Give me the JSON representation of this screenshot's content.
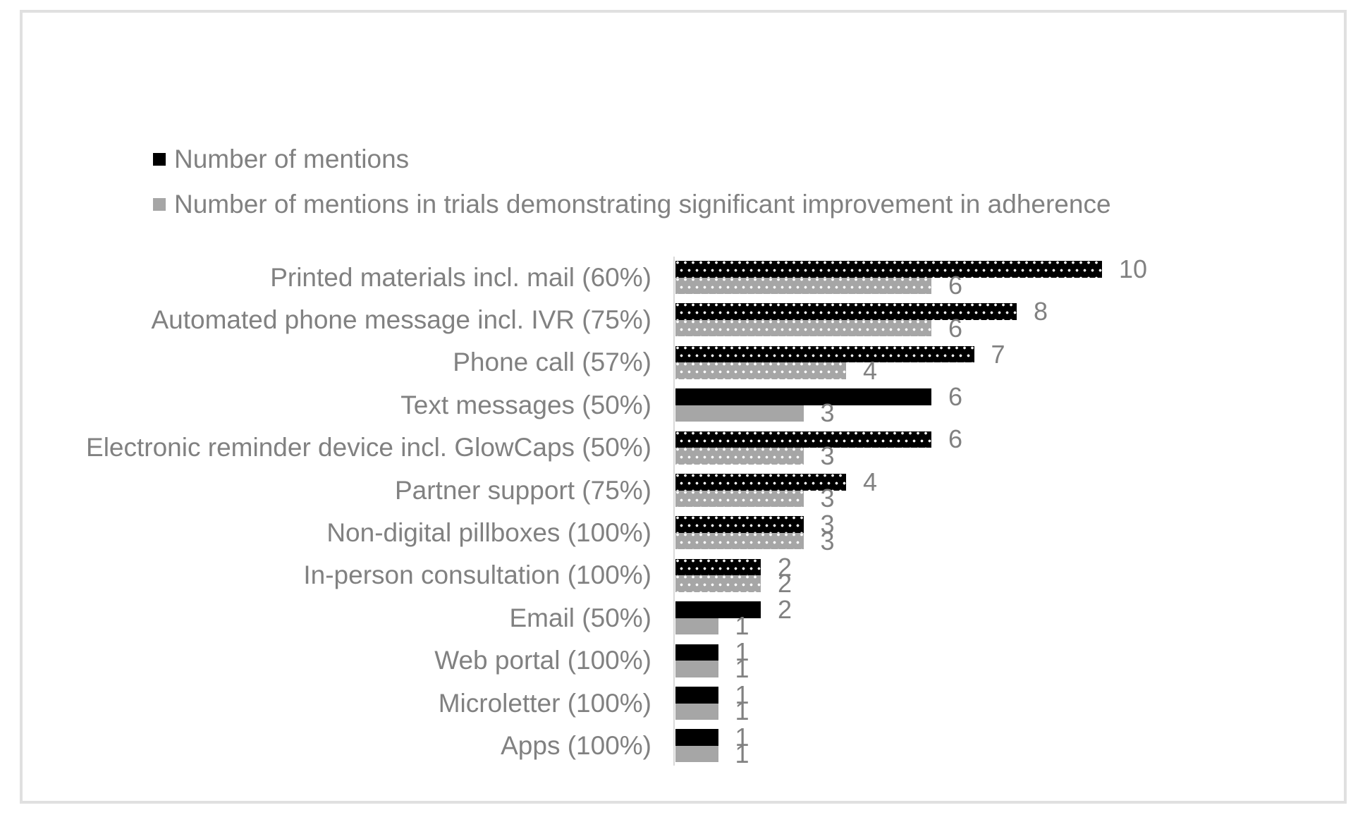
{
  "legend": {
    "items": [
      {
        "label": "Number of mentions",
        "color": "#000000"
      },
      {
        "label": "Number of mentions in trials demonstrating significant improvement in adherence",
        "color": "#a6a6a6"
      }
    ]
  },
  "colors": {
    "bar_primary": "#000000",
    "bar_secondary": "#a6a6a6",
    "text": "#818181",
    "axis_line": "#d9d9d9",
    "frame_border": "#e0e0e0",
    "pattern_dot": "#ffffff"
  },
  "chart_data": {
    "type": "bar",
    "orientation": "horizontal",
    "title": "",
    "categories": [
      "Printed materials incl. mail (60%)",
      "Automated phone message incl. IVR (75%)",
      "Phone call (57%)",
      "Text messages (50%)",
      "Electronic reminder device incl. GlowCaps (50%)",
      "Partner support (75%)",
      "Non-digital pillboxes (100%)",
      "In-person consultation (100%)",
      "Email (50%)",
      "Web portal (100%)",
      "Microletter (100%)",
      "Apps (100%)"
    ],
    "series": [
      {
        "name": "Number of mentions",
        "color": "#000000",
        "pattern": "white-dots",
        "values": [
          10,
          8,
          7,
          6,
          6,
          4,
          3,
          2,
          2,
          1,
          1,
          1
        ]
      },
      {
        "name": "Number of mentions in trials demonstrating significant improvement in adherence",
        "color": "#a6a6a6",
        "pattern": "white-dots",
        "values": [
          6,
          6,
          4,
          3,
          3,
          3,
          3,
          2,
          1,
          1,
          1,
          1
        ]
      }
    ],
    "solid_rows": [
      3,
      8,
      9,
      10,
      11
    ],
    "data_labels": true,
    "value_axis_visible": false,
    "xlim": [
      0,
      10
    ],
    "grid": false,
    "legend_position": "top-left"
  }
}
